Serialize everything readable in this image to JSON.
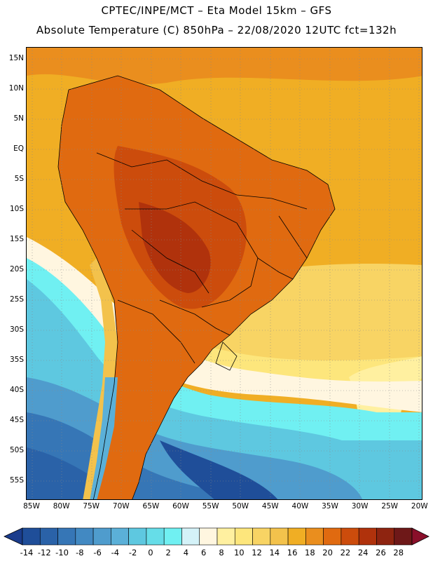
{
  "title_line1": "CPTEC/INPE/MCT –  Eta Model 15km – GFS",
  "title_line2": "Absolute Temperature (C) 850hPa – 22/08/2020 12UTC fct=132h",
  "lat_labels": [
    "15N",
    "10N",
    "5N",
    "EQ",
    "5S",
    "10S",
    "15S",
    "20S",
    "25S",
    "30S",
    "35S",
    "40S",
    "45S",
    "50S",
    "55S"
  ],
  "lon_labels": [
    "85W",
    "80W",
    "75W",
    "70W",
    "65W",
    "60W",
    "55W",
    "50W",
    "45W",
    "40W",
    "35W",
    "30W",
    "25W",
    "20W"
  ],
  "colorbar": {
    "labels": [
      "-14",
      "-12",
      "-10",
      "-8",
      "-6",
      "-4",
      "-2",
      "0",
      "2",
      "4",
      "6",
      "8",
      "10",
      "12",
      "14",
      "16",
      "18",
      "20",
      "22",
      "24",
      "26",
      "28"
    ],
    "colors": [
      "#1f4e99",
      "#2a62a8",
      "#3676b6",
      "#4289c2",
      "#4f9ccd",
      "#5bb0d8",
      "#5ec8e0",
      "#66dde8",
      "#70f0f2",
      "#d4f2f8",
      "#fff6e0",
      "#fff0a0",
      "#fde67c",
      "#f8d464",
      "#f3c24c",
      "#f0ae24",
      "#ea8e1e",
      "#e06a10",
      "#cc4c0c",
      "#b0320c",
      "#8e2410",
      "#6e1818"
    ],
    "under_color": "#1a3c8c",
    "over_color": "#8a0f2a"
  }
}
